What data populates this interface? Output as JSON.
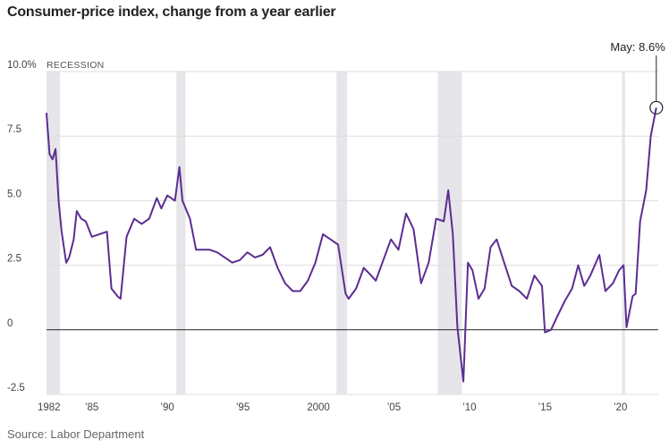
{
  "title": "Consumer-price index, change from a year earlier",
  "source": "Source: Labor Department",
  "colors": {
    "line": "#5b2e8f",
    "recession": "#e6e6ea",
    "grid": "#dedede",
    "zero": "#222222"
  },
  "chart_data": {
    "type": "line",
    "title": "Consumer-price index, change from a year earlier",
    "xlabel": "",
    "ylabel": "",
    "xlim": [
      1982.0,
      2022.5
    ],
    "ylim": [
      -2.5,
      10.0
    ],
    "grid": true,
    "x_ticks": [
      1982,
      1985,
      1990,
      1995,
      2000,
      2005,
      2010,
      2015,
      2020
    ],
    "x_tick_labels": [
      "1982",
      "’85",
      "’90",
      "’95",
      "2000",
      "’05",
      "’10",
      "’15",
      "’20"
    ],
    "y_ticks": [
      -2.5,
      0,
      2.5,
      5.0,
      7.5,
      10.0
    ],
    "y_tick_labels": [
      "-2.5",
      "0",
      "2.5",
      "5.0",
      "7.5",
      "10.0%"
    ],
    "recession_label": "RECESSION",
    "recessions": [
      [
        1982.0,
        1982.9
      ],
      [
        1990.6,
        1991.2
      ],
      [
        2001.2,
        2001.9
      ],
      [
        2007.9,
        2009.5
      ],
      [
        2020.1,
        2020.3
      ]
    ],
    "annotation": {
      "text": "May: 8.6%",
      "x": 2022.37,
      "y": 8.6
    },
    "series": [
      {
        "x": [
          1982.0,
          1982.2,
          1982.4,
          1982.6,
          1982.8,
          1983.0,
          1983.3,
          1983.5,
          1983.8,
          1984.0,
          1984.3,
          1984.6,
          1985.0,
          1985.5,
          1986.0,
          1986.3,
          1986.7,
          1986.9,
          1987.3,
          1987.8,
          1988.3,
          1988.8,
          1989.3,
          1989.6,
          1990.0,
          1990.5,
          1990.8,
          1991.0,
          1991.5,
          1991.9,
          1992.3,
          1992.8,
          1993.3,
          1993.8,
          1994.3,
          1994.8,
          1995.3,
          1995.8,
          1996.3,
          1996.8,
          1997.3,
          1997.8,
          1998.3,
          1998.8,
          1999.3,
          1999.8,
          2000.3,
          2000.8,
          2001.3,
          2001.8,
          2002.0,
          2002.5,
          2003.0,
          2003.5,
          2003.8,
          2004.3,
          2004.8,
          2005.3,
          2005.8,
          2006.3,
          2006.8,
          2007.3,
          2007.8,
          2008.3,
          2008.6,
          2008.9,
          2009.2,
          2009.6,
          2009.9,
          2010.2,
          2010.6,
          2011.0,
          2011.4,
          2011.8,
          2012.3,
          2012.8,
          2013.3,
          2013.8,
          2014.3,
          2014.8,
          2015.0,
          2015.4,
          2015.8,
          2016.3,
          2016.8,
          2017.2,
          2017.6,
          2018.0,
          2018.6,
          2019.0,
          2019.5,
          2019.9,
          2020.2,
          2020.4,
          2020.8,
          2021.0,
          2021.3,
          2021.7,
          2022.0,
          2022.37
        ],
        "y": [
          8.4,
          6.8,
          6.6,
          7.0,
          5.0,
          3.8,
          2.6,
          2.8,
          3.5,
          4.6,
          4.3,
          4.2,
          3.6,
          3.7,
          3.8,
          1.6,
          1.3,
          1.2,
          3.6,
          4.3,
          4.1,
          4.3,
          5.1,
          4.7,
          5.2,
          5.0,
          6.3,
          5.0,
          4.3,
          3.1,
          3.1,
          3.1,
          3.0,
          2.8,
          2.6,
          2.7,
          3.0,
          2.8,
          2.9,
          3.2,
          2.4,
          1.8,
          1.5,
          1.5,
          1.9,
          2.6,
          3.7,
          3.5,
          3.3,
          1.4,
          1.2,
          1.6,
          2.4,
          2.1,
          1.9,
          2.7,
          3.5,
          3.1,
          4.5,
          3.9,
          1.8,
          2.6,
          4.3,
          4.2,
          5.4,
          3.7,
          0.1,
          -2.0,
          2.6,
          2.3,
          1.2,
          1.6,
          3.2,
          3.5,
          2.6,
          1.7,
          1.5,
          1.2,
          2.1,
          1.7,
          -0.1,
          0.0,
          0.5,
          1.1,
          1.6,
          2.5,
          1.7,
          2.1,
          2.9,
          1.5,
          1.8,
          2.3,
          2.5,
          0.1,
          1.3,
          1.4,
          4.2,
          5.4,
          7.5,
          8.6
        ]
      }
    ]
  }
}
